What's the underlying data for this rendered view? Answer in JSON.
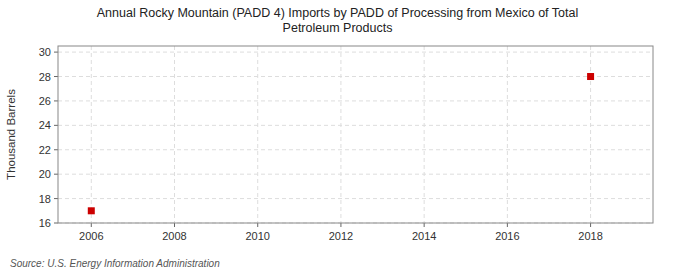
{
  "chart_data": {
    "type": "scatter",
    "title": "Annual Rocky Mountain (PADD 4) Imports by PADD of Processing from Mexico of Total\nPetroleum Products",
    "y_label": "Thousand Barrels",
    "annotations": [
      "Source: U.S. Energy Information Administration"
    ],
    "x": [
      2006,
      2018
    ],
    "values": [
      17,
      28
    ],
    "color": "#cc0000",
    "marker": "square",
    "xlim": [
      2005.2,
      2019.5
    ],
    "ylim": [
      16,
      30.5
    ],
    "xticks": [
      2006,
      2008,
      2010,
      2012,
      2014,
      2016,
      2018
    ],
    "yticks": [
      16,
      18,
      20,
      22,
      24,
      26,
      28,
      30
    ],
    "grid": true
  }
}
